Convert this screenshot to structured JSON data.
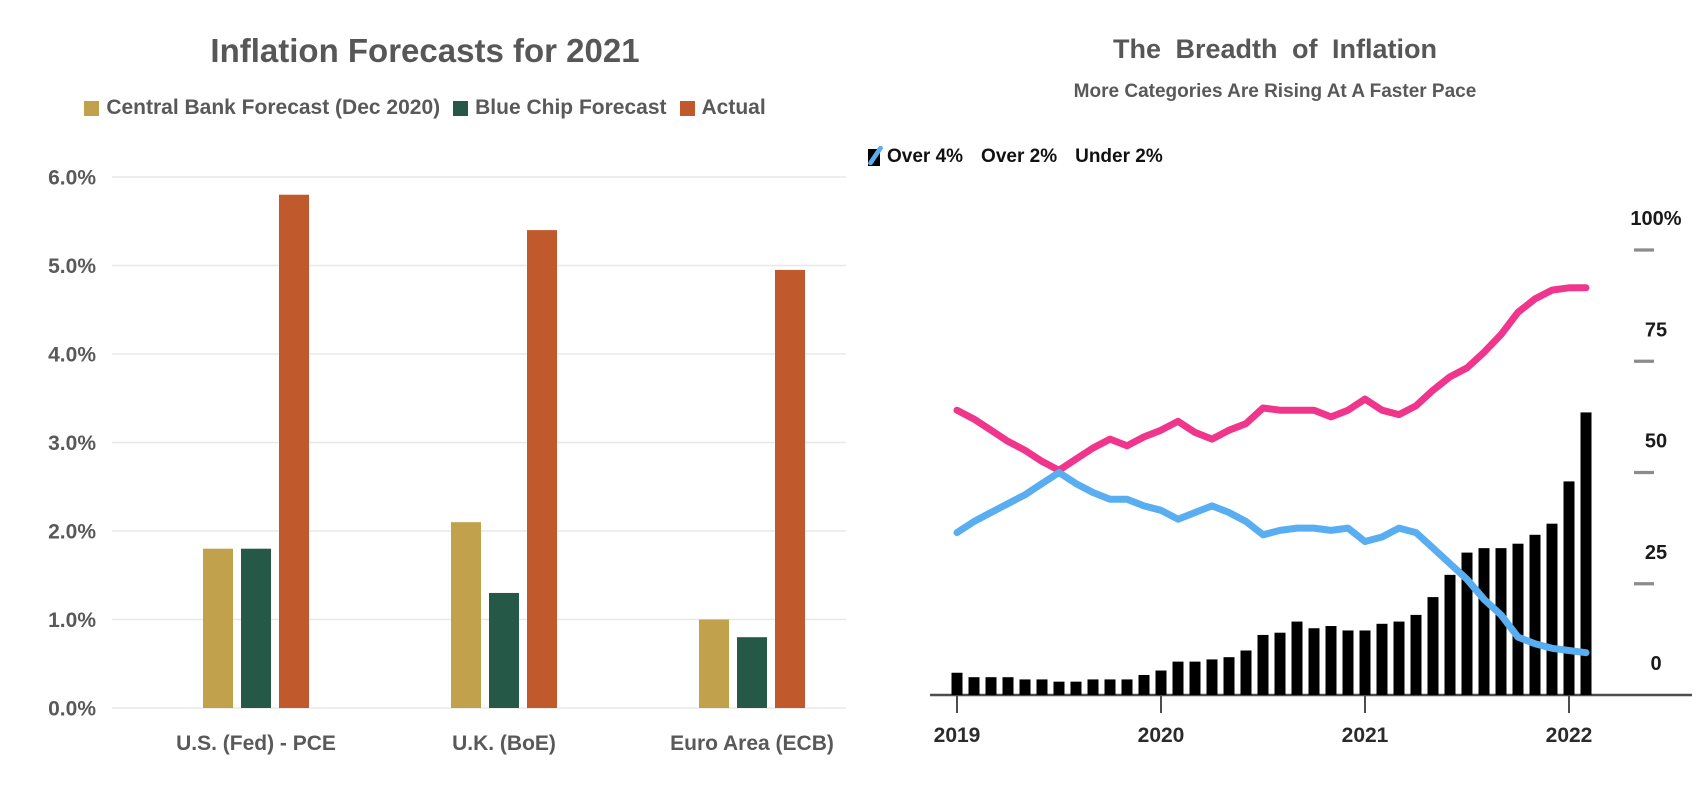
{
  "chart_data": [
    {
      "type": "bar",
      "title": "Inflation Forecasts for 2021",
      "categories": [
        "U.S. (Fed) - PCE",
        "U.K. (BoE)",
        "Euro Area (ECB)"
      ],
      "series": [
        {
          "name": "Central Bank Forecast (Dec 2020)",
          "color": "#C2A14C",
          "values": [
            1.8,
            2.1,
            1.0
          ]
        },
        {
          "name": "Blue Chip Forecast",
          "color": "#255847",
          "values": [
            1.8,
            1.3,
            0.8
          ]
        },
        {
          "name": "Actual",
          "color": "#C05A2D",
          "values": [
            5.8,
            5.4,
            4.95
          ]
        }
      ],
      "ylim": [
        0,
        6
      ],
      "y_tick_labels": [
        "0.0%",
        "1.0%",
        "2.0%",
        "3.0%",
        "4.0%",
        "5.0%",
        "6.0%"
      ],
      "grid": true,
      "legend_position": "top",
      "text_color": "#595959",
      "grid_color": "#e8e8e8"
    },
    {
      "type": "combo_bar_line",
      "title": "The Breadth of Inflation",
      "subtitle": "More Categories Are Rising At A Faster Pace",
      "x_start": "2019-01",
      "x_end": "2022-02",
      "x_tick_labels": [
        "2019",
        "2020",
        "2021",
        "2022"
      ],
      "y_axis_side": "right",
      "ylim": [
        0,
        100
      ],
      "y_ticks": [
        100,
        75,
        50,
        25,
        0
      ],
      "y_tick_labels": [
        "100%",
        "75",
        "50",
        "25",
        "0"
      ],
      "legend_position": "top-left",
      "series": [
        {
          "name": "Over 4%",
          "type": "bar",
          "color": "#000000",
          "values": [
            5,
            4,
            4,
            4,
            3.5,
            3.5,
            3,
            3,
            3.5,
            3.5,
            3.5,
            4.5,
            5.5,
            7.5,
            7.5,
            8,
            8.5,
            10,
            13.5,
            14,
            16.5,
            15,
            15.5,
            14.5,
            14.5,
            16,
            16.5,
            18,
            22,
            27,
            32,
            33,
            33,
            34,
            36,
            38.5,
            48,
            63.5
          ]
        },
        {
          "name": "Over 2%",
          "type": "line",
          "color": "#F0368C",
          "values": [
            64,
            62,
            59.5,
            57,
            55,
            52.5,
            50.5,
            53,
            55.5,
            57.5,
            56,
            58,
            59.5,
            61.5,
            59,
            57.5,
            59.5,
            61,
            64.5,
            64,
            64,
            64,
            62.5,
            64,
            66.5,
            64,
            63,
            65,
            68.5,
            71.5,
            73.5,
            77,
            81,
            86,
            89,
            91,
            91.5,
            91.5
          ]
        },
        {
          "name": "Under 2%",
          "type": "line",
          "color": "#58AEF0",
          "values": [
            36.5,
            39,
            41,
            43,
            45,
            47.5,
            50,
            47.5,
            45.5,
            44,
            44,
            42.5,
            41.5,
            39.5,
            41,
            42.5,
            41,
            39,
            36,
            37,
            37.5,
            37.5,
            37,
            37.5,
            34.5,
            35.5,
            37.5,
            36.5,
            33,
            29.5,
            26,
            21.5,
            18,
            13,
            11.5,
            10.5,
            10,
            9.5
          ]
        }
      ],
      "axis_color": "#4d4d4d",
      "tick_text_color": "#1a1a1a"
    }
  ]
}
